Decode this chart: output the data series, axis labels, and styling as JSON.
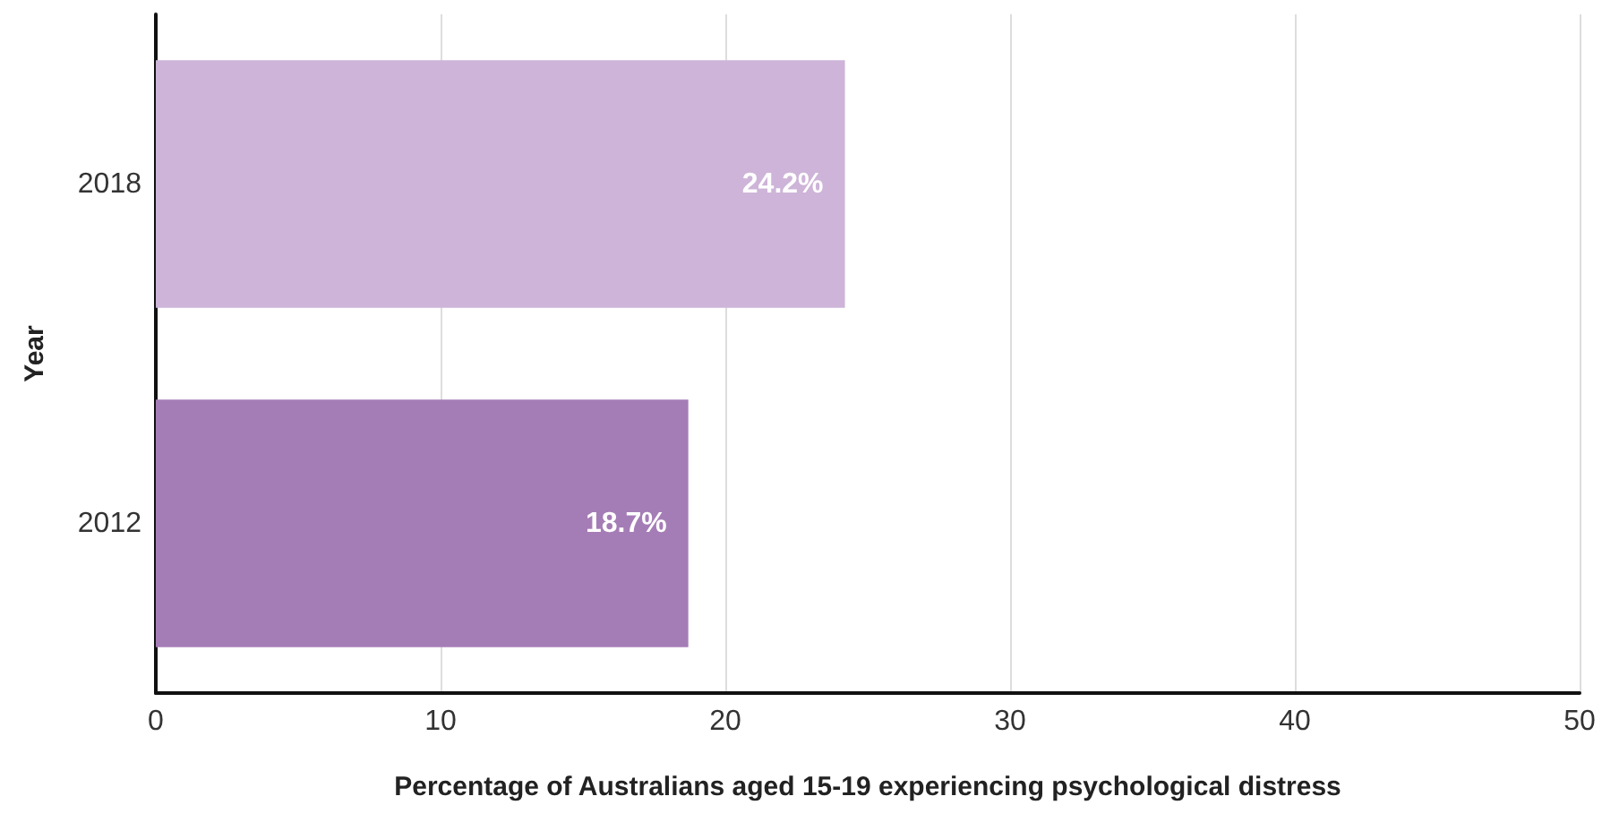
{
  "chart_data": {
    "type": "bar",
    "orientation": "horizontal",
    "xlabel": "Percentage of Australians aged 15-19 experiencing psychological distress",
    "ylabel": "Year",
    "categories": [
      "2018",
      "2012"
    ],
    "values": [
      24.2,
      18.7
    ],
    "colors": [
      "#cdb4d8",
      "#a57db6"
    ],
    "value_labels": [
      "24.2%",
      "18.7%"
    ],
    "xlim": [
      0,
      50
    ],
    "xticks": [
      0,
      10,
      20,
      30,
      40,
      50
    ],
    "grid": "x"
  }
}
